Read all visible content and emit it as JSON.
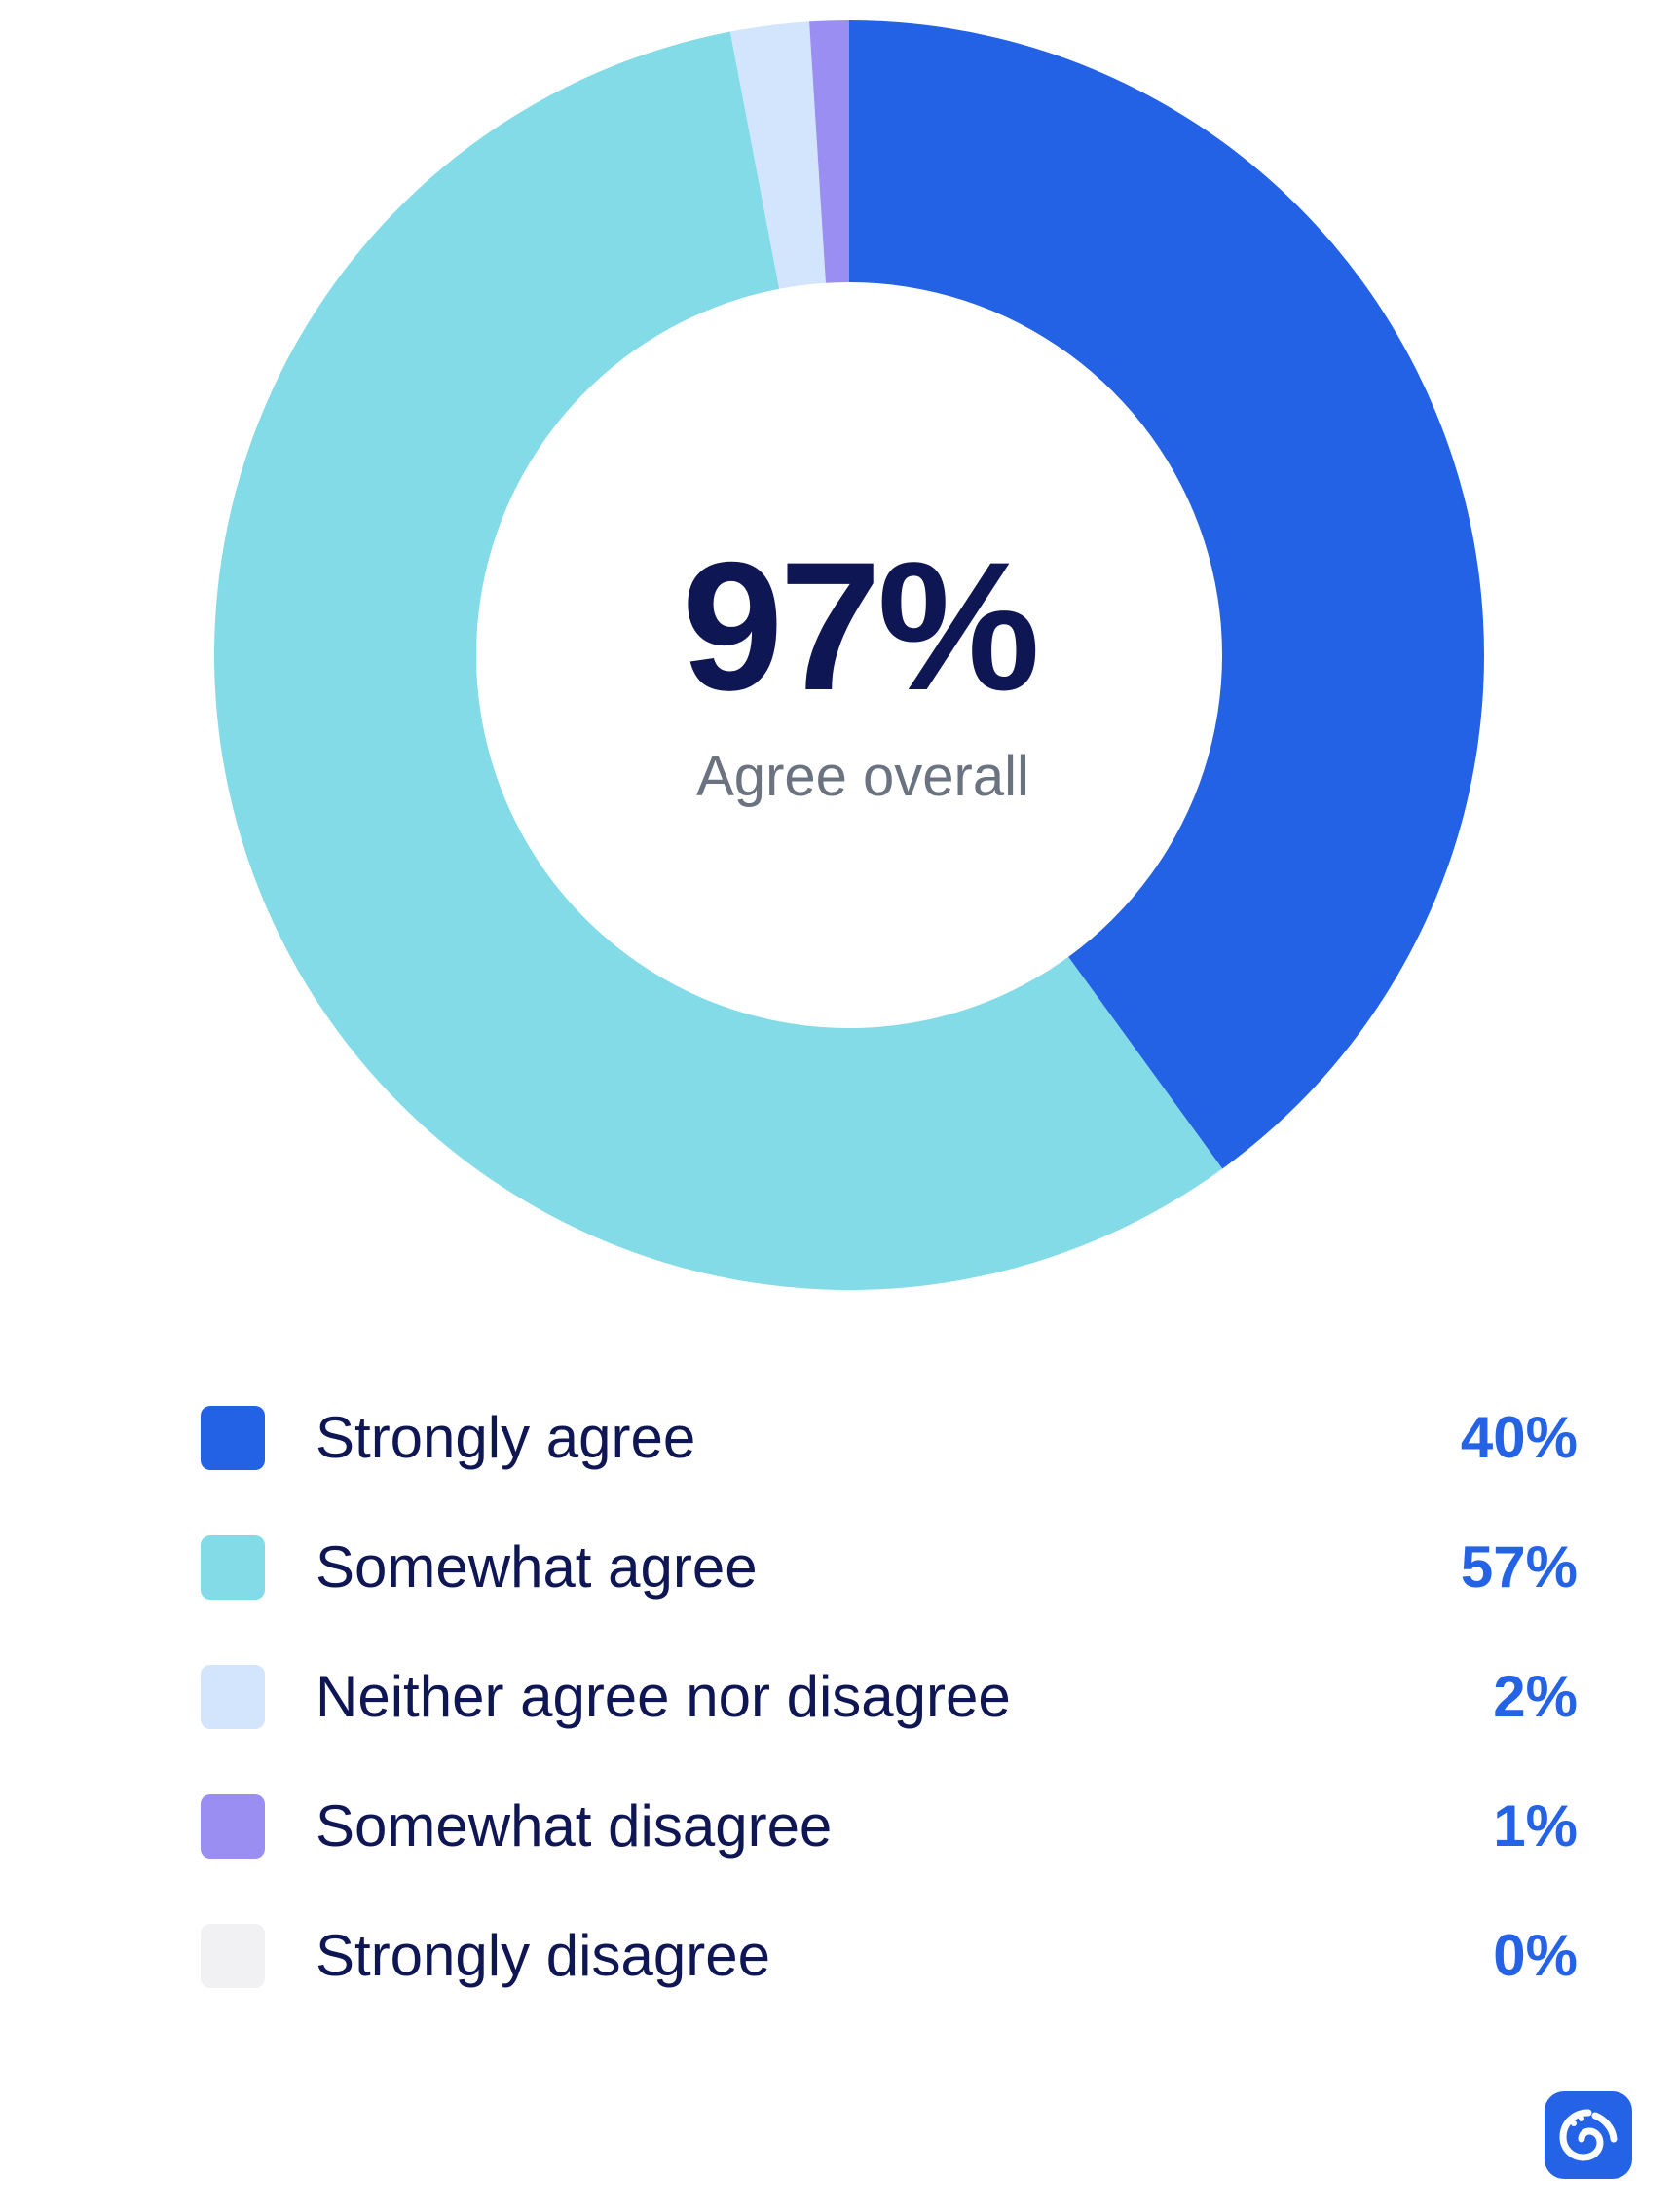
{
  "chart_data": {
    "type": "pie",
    "center": {
      "value": "97%",
      "label": "Agree overall"
    },
    "slices": [
      {
        "label": "Strongly agree",
        "value": 40,
        "value_label": "40%",
        "color": "#2462e5"
      },
      {
        "label": "Somewhat agree",
        "value": 57,
        "value_label": "57%",
        "color": "#83dbe8"
      },
      {
        "label": "Neither agree nor disagree",
        "value": 2,
        "value_label": "2%",
        "color": "#d3e5fd"
      },
      {
        "label": "Somewhat disagree",
        "value": 1,
        "value_label": "1%",
        "color": "#9b8ef3"
      },
      {
        "label": "Strongly disagree",
        "value": 0,
        "value_label": "0%",
        "color": "#f1f0f2"
      }
    ],
    "legend_placement": "bottom"
  },
  "colors": {
    "text_dark": "#0f1654",
    "text_muted": "#6b7280",
    "accent": "#2563e6"
  },
  "logo": {
    "icon": "swirl-logo-icon"
  }
}
